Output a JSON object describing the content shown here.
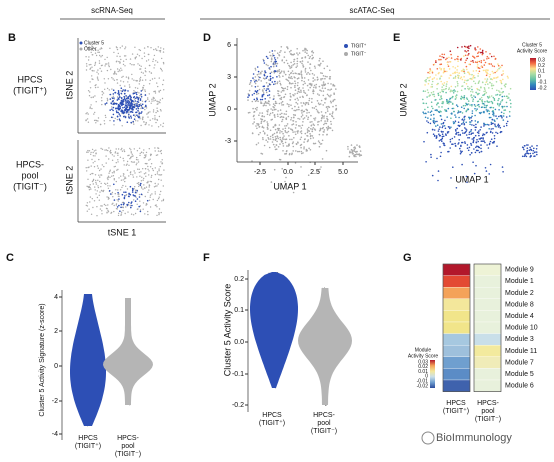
{
  "headers": {
    "left": "scRNA-Seq",
    "right": "scATAC-Seq"
  },
  "panel_b": {
    "label": "B",
    "legend": [
      "Cluster 5",
      "Other"
    ],
    "row_labels": [
      [
        "HPCS",
        "(TIGIT⁺)"
      ],
      [
        "HPCS-",
        "pool",
        "(TIGIT⁻)"
      ]
    ],
    "y_label": "tSNE 2",
    "x_label": "tSNE 1"
  },
  "panel_d": {
    "label": "D",
    "y_label": "UMAP 2",
    "x_label": "UMAP 1",
    "yticks": [
      "6",
      "3",
      "0",
      "-3"
    ],
    "xticks": [
      "-2.5",
      "0.0",
      "2.5",
      "5.0"
    ],
    "legend": [
      "TIGIT⁺",
      "TIGIT⁻"
    ]
  },
  "panel_e": {
    "label": "E",
    "y_label": "UMAP 2",
    "x_label": "UMAP 1",
    "legend_title": [
      "Cluster 5",
      "Activity Score"
    ],
    "scale_ticks": [
      "0.3",
      "0.2",
      "0.1",
      "0",
      "-0.1",
      "-0.2"
    ]
  },
  "panel_c": {
    "label": "C",
    "y_label": "Cluster 5 Activity Signature (z-score)",
    "yticks": [
      "4",
      "2",
      "0",
      "-2",
      "-4"
    ],
    "groups": [
      [
        "HPCS",
        "(TIGIT⁺)"
      ],
      [
        "HPCS-",
        "pool",
        "(TIGIT⁻)"
      ]
    ]
  },
  "panel_f": {
    "label": "F",
    "y_label": "Cluster 5 Activity Score",
    "yticks": [
      "0.2",
      "0.1",
      "0.0",
      "-0.1",
      "-0.2"
    ],
    "groups": [
      [
        "HPCS",
        "(TIGIT⁺)"
      ],
      [
        "HPCS-",
        "pool",
        "(TIGIT⁻)"
      ]
    ]
  },
  "panel_g": {
    "label": "G",
    "modules": [
      "Module 9",
      "Module 1",
      "Module 2",
      "Module 8",
      "Module 4",
      "Module 10",
      "Module 3",
      "Module 11",
      "Module 7",
      "Module 5",
      "Module 6"
    ],
    "colors": [
      [
        "#b2182b",
        "#e34a33",
        "#f4a259",
        "#f3e79b",
        "#f1e58a",
        "#f1e58a",
        "#a6c8e0",
        "#9ec0dc",
        "#6f9fcf",
        "#5b8cc6",
        "#3f62ad"
      ],
      [
        "#eef3d6",
        "#e8f1dc",
        "#e8f1dc",
        "#e8f1dc",
        "#e8f1dc",
        "#e8f1dc",
        "#c9dfe9",
        "#f3ea9e",
        "#f0ecb8",
        "#e8f1dc",
        "#e8f1dc"
      ]
    ],
    "legend_title": [
      "Module",
      "Activity Score"
    ],
    "scale_ticks": [
      "0.03",
      "0.02",
      "0.01",
      "0",
      "-0.01",
      "-0.02"
    ],
    "groups": [
      [
        "HPCS",
        "(TIGIT⁺)"
      ],
      [
        "HPCS-",
        "pool",
        "(TIGIT⁻)"
      ]
    ]
  },
  "watermark": "BioImmunology"
}
